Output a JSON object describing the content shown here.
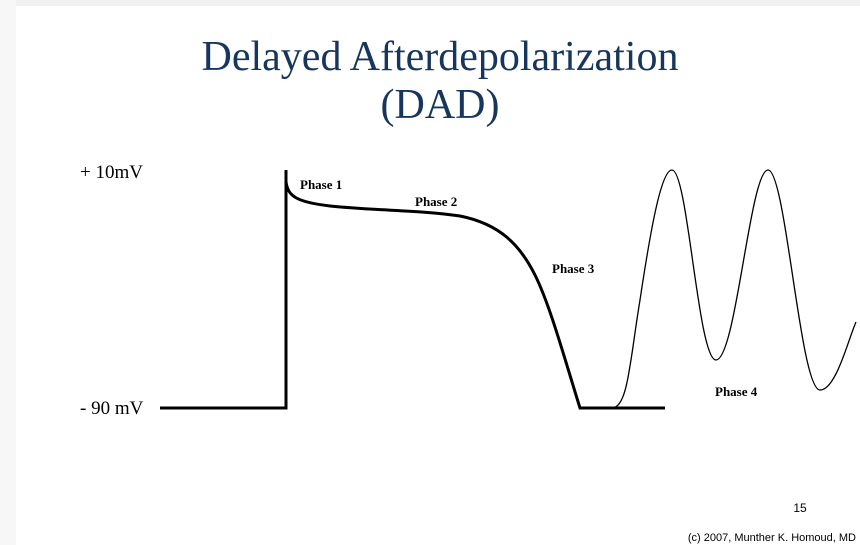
{
  "title": [
    "Delayed Afterdepolarization",
    "(DAD)"
  ],
  "voltage_labels": {
    "top": "+ 10mV",
    "bottom": "- 90 mV"
  },
  "phases": [
    "Phase 1",
    "Phase 2",
    "Phase 3",
    "Phase 4"
  ],
  "slide_number": "15",
  "footer": "(c) 2007, Munther K. Homoud, MD"
}
